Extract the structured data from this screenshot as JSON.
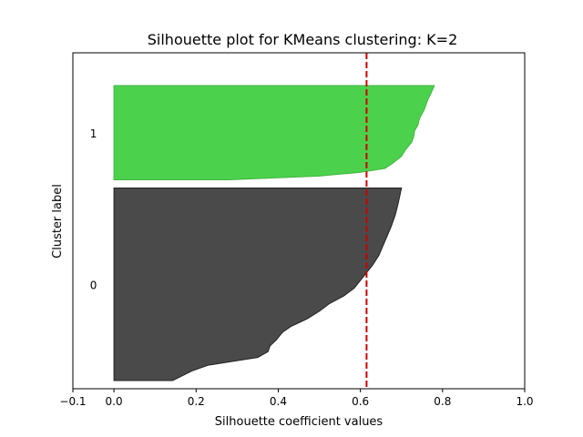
{
  "chart_data": {
    "type": "area",
    "title": "Silhouette plot for KMeans clustering: K=2",
    "xlabel": "Silhouette coefficient values",
    "ylabel": "Cluster label",
    "xlim": [
      -0.1,
      1.0
    ],
    "ylim": [
      0,
      410
    ],
    "xticks": [
      -0.1,
      0.0,
      0.2,
      0.4,
      0.6,
      0.8,
      1.0
    ],
    "xtick_labels": [
      "−0.1",
      "0.0",
      "0.2",
      "0.4",
      "0.6",
      "0.8",
      "1.0"
    ],
    "grid": false,
    "average_silhouette_score": 0.615,
    "average_line_color": "#cc0000",
    "clusters": [
      {
        "label": "0",
        "color": "#4a4a4a",
        "edge_color": "#222222",
        "y_start": 10,
        "y_end": 245,
        "profile": [
          [
            0.0,
            0.143
          ],
          [
            0.05,
            0.19
          ],
          [
            0.08,
            0.23
          ],
          [
            0.12,
            0.35
          ],
          [
            0.15,
            0.375
          ],
          [
            0.18,
            0.38
          ],
          [
            0.21,
            0.395
          ],
          [
            0.25,
            0.41
          ],
          [
            0.28,
            0.43
          ],
          [
            0.32,
            0.47
          ],
          [
            0.36,
            0.5
          ],
          [
            0.4,
            0.525
          ],
          [
            0.44,
            0.56
          ],
          [
            0.48,
            0.585
          ],
          [
            0.52,
            0.6
          ],
          [
            0.56,
            0.615
          ],
          [
            0.6,
            0.63
          ],
          [
            0.65,
            0.645
          ],
          [
            0.7,
            0.655
          ],
          [
            0.75,
            0.665
          ],
          [
            0.8,
            0.675
          ],
          [
            0.86,
            0.685
          ],
          [
            0.92,
            0.692
          ],
          [
            1.0,
            0.7
          ]
        ]
      },
      {
        "label": "1",
        "color": "#4cd14c",
        "edge_color": "#3fb53f",
        "y_start": 255,
        "y_end": 370,
        "profile": [
          [
            0.0,
            0.28
          ],
          [
            0.04,
            0.5
          ],
          [
            0.06,
            0.55
          ],
          [
            0.08,
            0.6
          ],
          [
            0.12,
            0.66
          ],
          [
            0.18,
            0.68
          ],
          [
            0.25,
            0.7
          ],
          [
            0.32,
            0.71
          ],
          [
            0.4,
            0.725
          ],
          [
            0.46,
            0.73
          ],
          [
            0.52,
            0.732
          ],
          [
            0.58,
            0.74
          ],
          [
            0.62,
            0.742
          ],
          [
            0.66,
            0.745
          ],
          [
            0.7,
            0.75
          ],
          [
            0.74,
            0.755
          ],
          [
            0.8,
            0.76
          ],
          [
            0.86,
            0.765
          ],
          [
            0.9,
            0.77
          ],
          [
            0.95,
            0.775
          ],
          [
            1.0,
            0.78
          ]
        ]
      }
    ]
  }
}
